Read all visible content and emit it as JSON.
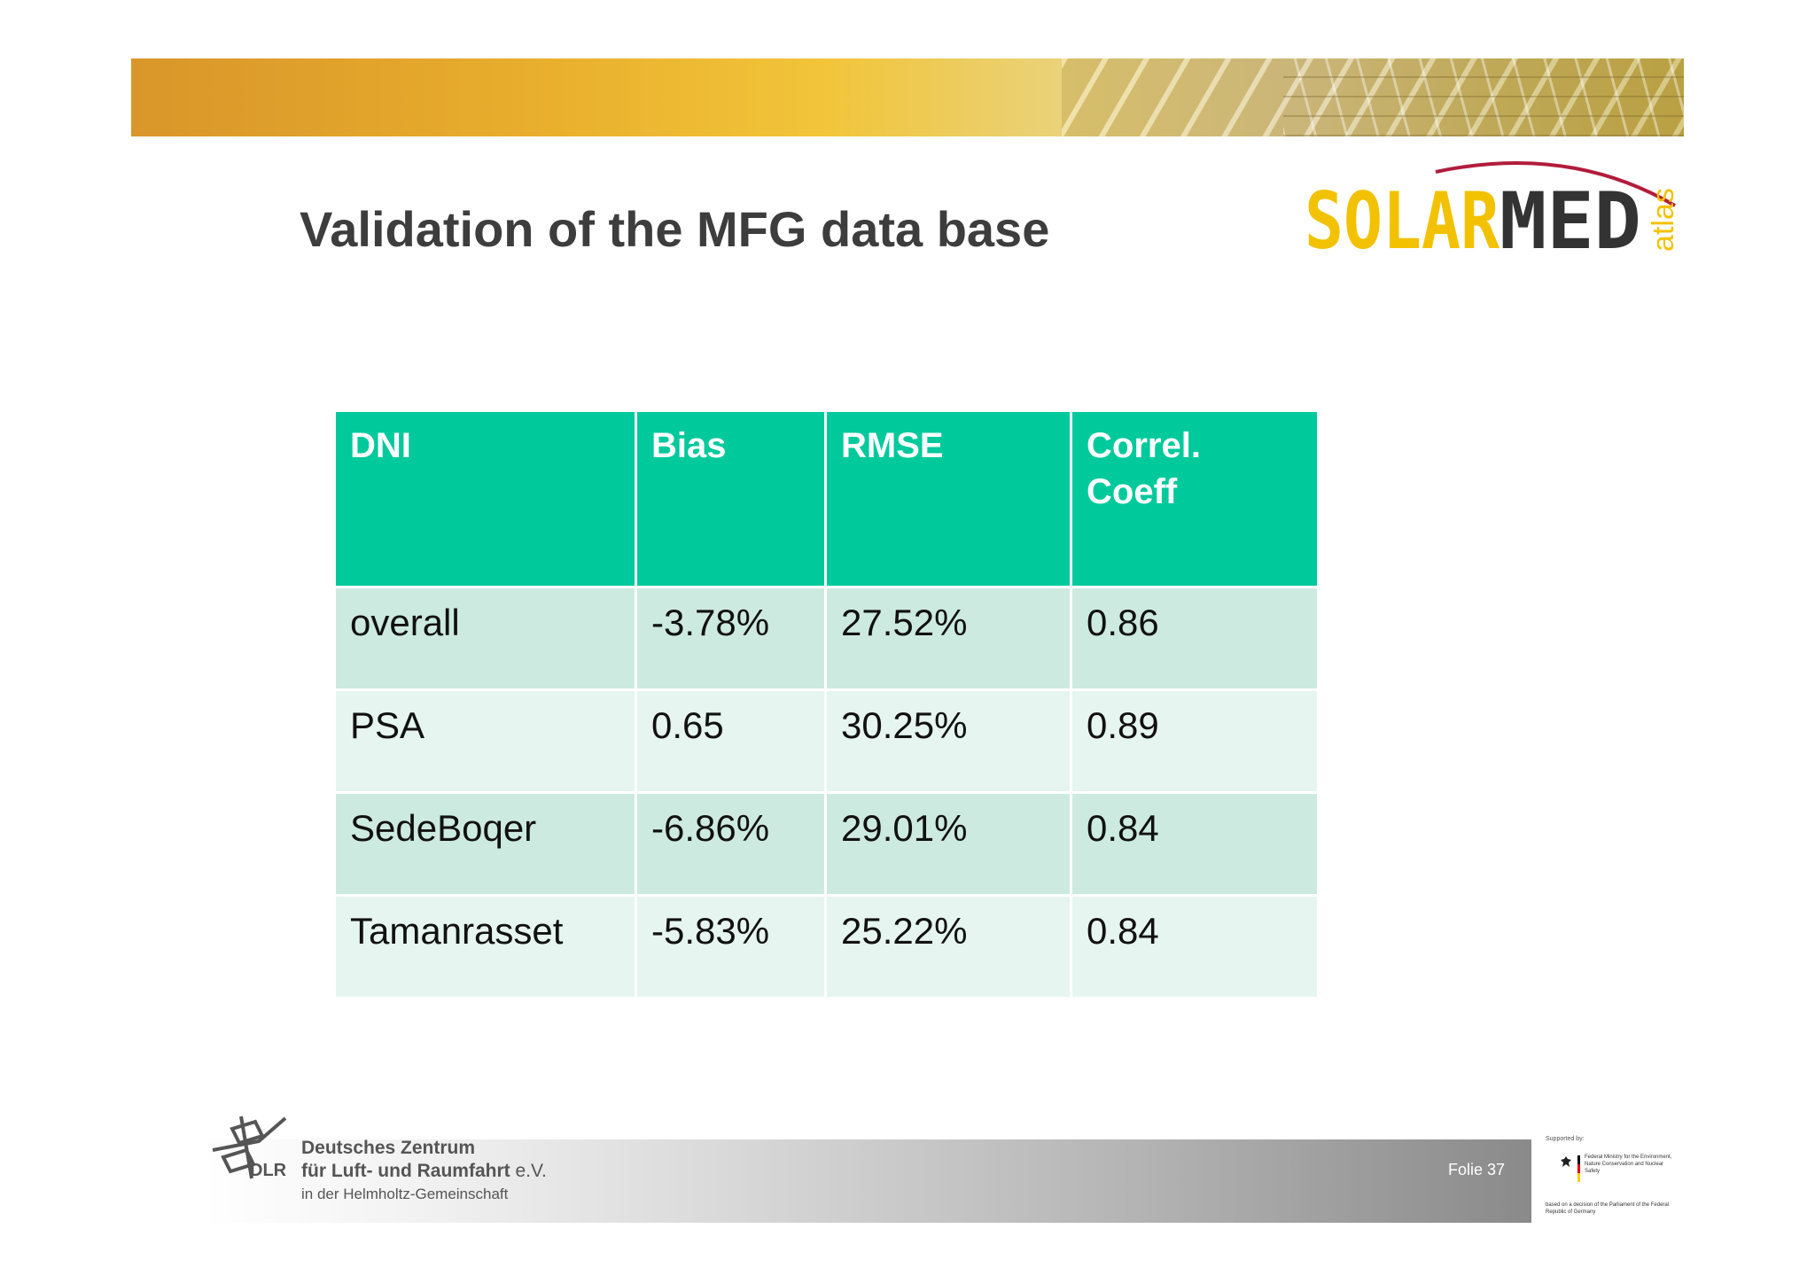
{
  "slide": {
    "title": "Validation of the MFG data base",
    "logo": {
      "part1": "SOLAR",
      "part2": "MED",
      "part3": "atlas",
      "colors": {
        "yellow": "#f2c200",
        "dark": "#333333",
        "arc": "#b21c3c"
      }
    }
  },
  "table": {
    "headers": [
      "DNI",
      "Bias",
      "RMSE",
      "Correl. Coeff"
    ],
    "rows": [
      [
        "overall",
        "-3.78%",
        "27.52%",
        "0.86"
      ],
      [
        "PSA",
        "0.65",
        "30.25%",
        "0.89"
      ],
      [
        "SedeBoqer",
        "-6.86%",
        "29.01%",
        "0.84"
      ],
      [
        "Tamanrasset",
        "-5.83%",
        "25.22%",
        "0.84"
      ]
    ],
    "colors": {
      "header": "#00c99c",
      "row_dark": "#cdeae0",
      "row_light": "#e6f5ef"
    }
  },
  "footer": {
    "dlr_abbr": "DLR",
    "org_line1": "Deutsches Zentrum",
    "org_line2": "für Luft- und Raumfahrt",
    "org_line2_suffix": "e.V.",
    "org_line3": "in der Helmholtz-Gemeinschaft",
    "folio": "Folie 37",
    "support_label": "Supported by:",
    "ministry": "Federal Ministry for the Environment, Nature Conservation and Nuclear Safety",
    "decision": "based on a decision of the Parliament of the Federal Republic of Germany"
  }
}
